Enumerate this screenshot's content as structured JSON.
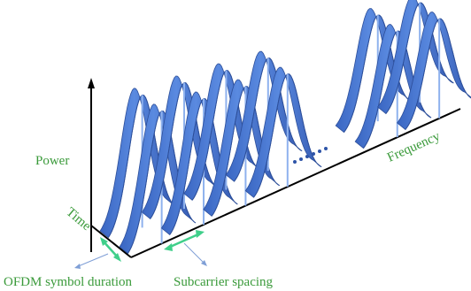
{
  "labels": {
    "power": "Power",
    "time": "Time",
    "frequency": "Frequency",
    "symbol_duration": "OFDM symbol duration",
    "subcarrier_spacing": "Subcarrier spacing"
  },
  "colors": {
    "pulse_fill": "#4f7fd6",
    "pulse_dark": "#2d4f9a",
    "pulse_light": "#8fb2ee",
    "axis": "#000000",
    "dots": "#2e54a8",
    "label_green": "#3a9a3a",
    "arrow_green": "#3fcf8a",
    "arrow_blue": "#7f9fd6"
  },
  "diagram": {
    "visible_subcarrier_groups": 4,
    "gap_after_group": 4,
    "trailing_groups": 2,
    "symbols_per_group": 2
  }
}
